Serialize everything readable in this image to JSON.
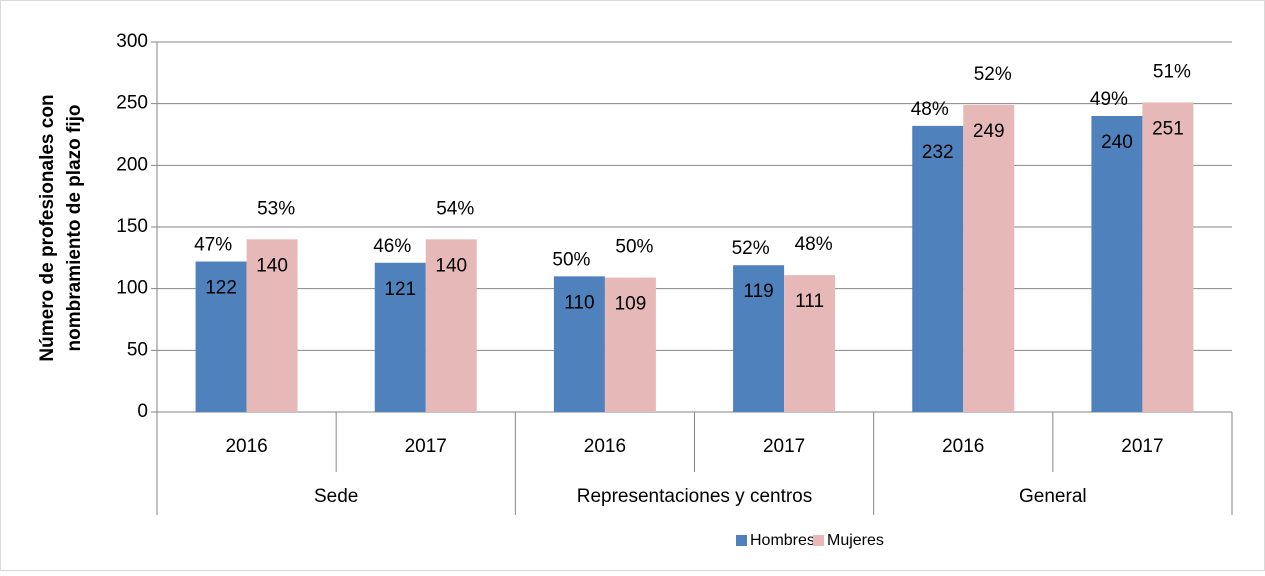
{
  "chart_data": {
    "type": "bar",
    "ylabel": [
      "Número de profesionales con",
      "nombramiento de plazo fijo"
    ],
    "categories": [
      "2016",
      "2017",
      "2016",
      "2017",
      "2016",
      "2017"
    ],
    "groups": [
      "Sede",
      "Representaciones y centros",
      "General"
    ],
    "series": [
      {
        "name": "Hombres",
        "color": "#4f81bd",
        "values": [
          122,
          121,
          110,
          119,
          232,
          240
        ],
        "percent_labels": [
          "47%",
          "46%",
          "50%",
          "52%",
          "48%",
          "49%"
        ]
      },
      {
        "name": "Mujeres",
        "color": "#e6b9b8",
        "values": [
          140,
          140,
          109,
          111,
          249,
          251
        ],
        "percent_labels": [
          "53%",
          "54%",
          "50%",
          "48%",
          "52%",
          "51%"
        ]
      }
    ],
    "ylim": [
      0,
      300
    ],
    "yticks": [
      0,
      50,
      100,
      150,
      200,
      250,
      300
    ],
    "grid": true,
    "legend": "bottom"
  }
}
